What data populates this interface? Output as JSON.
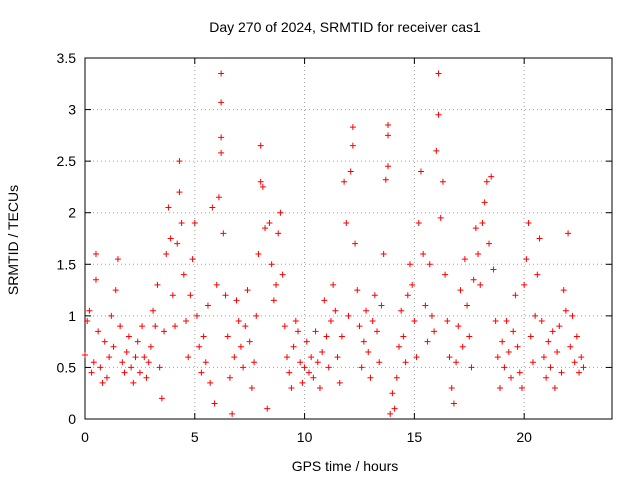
{
  "chart_data": {
    "type": "scatter",
    "title": "Day 270 of 2024, SRMTID for receiver cas1",
    "xlabel": "GPS time / hours",
    "ylabel": "SRMTID / TECUs",
    "xlim": [
      0,
      24
    ],
    "ylim": [
      0,
      3.5
    ],
    "xticks": [
      0,
      5,
      10,
      15,
      20
    ],
    "xtick_labels": [
      "0",
      "5",
      "10",
      "15",
      "20"
    ],
    "yticks": [
      0,
      0.5,
      1,
      1.5,
      2,
      2.5,
      3,
      3.5
    ],
    "ytick_labels": [
      "0",
      "0.5",
      "1",
      "1.5",
      "2",
      "2.5",
      "3",
      "3.5"
    ],
    "grid": true,
    "marker": "+",
    "color": "#ff0000",
    "series": [
      {
        "name": "SRMTID",
        "points": [
          [
            0.0,
            0.62
          ],
          [
            0.1,
            0.95
          ],
          [
            0.2,
            1.05
          ],
          [
            0.3,
            0.45
          ],
          [
            0.4,
            0.55
          ],
          [
            0.5,
            1.35
          ],
          [
            0.5,
            1.6
          ],
          [
            0.6,
            0.85
          ],
          [
            0.7,
            0.5
          ],
          [
            0.8,
            0.35
          ],
          [
            0.9,
            0.75
          ],
          [
            1.0,
            0.4
          ],
          [
            1.1,
            0.6
          ],
          [
            1.2,
            1.0
          ],
          [
            1.3,
            0.7
          ],
          [
            1.4,
            1.25
          ],
          [
            1.5,
            1.55
          ],
          [
            1.6,
            0.9
          ],
          [
            1.7,
            0.55
          ],
          [
            1.8,
            0.45
          ],
          [
            1.9,
            0.65
          ],
          [
            2.0,
            0.8
          ],
          [
            2.1,
            0.5
          ],
          [
            2.2,
            0.35
          ],
          [
            2.3,
            0.6
          ],
          [
            2.4,
            0.75
          ],
          [
            2.5,
            0.45
          ],
          [
            2.6,
            0.9
          ],
          [
            2.7,
            0.6
          ],
          [
            2.8,
            0.4
          ],
          [
            2.9,
            0.55
          ],
          [
            3.0,
            0.7
          ],
          [
            3.1,
            1.05
          ],
          [
            3.2,
            0.9
          ],
          [
            3.3,
            1.3
          ],
          [
            3.4,
            0.5
          ],
          [
            3.5,
            0.2
          ],
          [
            3.6,
            0.85
          ],
          [
            3.7,
            1.6
          ],
          [
            3.8,
            2.05
          ],
          [
            3.9,
            1.75
          ],
          [
            4.0,
            1.2
          ],
          [
            4.1,
            0.9
          ],
          [
            4.2,
            1.7
          ],
          [
            4.3,
            2.2
          ],
          [
            4.3,
            2.5
          ],
          [
            4.4,
            1.9
          ],
          [
            4.5,
            1.4
          ],
          [
            4.6,
            0.95
          ],
          [
            4.7,
            0.6
          ],
          [
            4.8,
            1.2
          ],
          [
            4.9,
            1.55
          ],
          [
            5.0,
            1.9
          ],
          [
            5.1,
            1.0
          ],
          [
            5.2,
            0.7
          ],
          [
            5.3,
            0.45
          ],
          [
            5.4,
            0.8
          ],
          [
            5.5,
            0.55
          ],
          [
            5.6,
            1.1
          ],
          [
            5.7,
            0.35
          ],
          [
            5.8,
            2.05
          ],
          [
            5.9,
            0.15
          ],
          [
            6.0,
            1.3
          ],
          [
            6.1,
            2.15
          ],
          [
            6.2,
            3.35
          ],
          [
            6.2,
            3.07
          ],
          [
            6.2,
            2.73
          ],
          [
            6.2,
            2.58
          ],
          [
            6.3,
            1.8
          ],
          [
            6.4,
            1.2
          ],
          [
            6.5,
            0.8
          ],
          [
            6.6,
            0.4
          ],
          [
            6.7,
            0.05
          ],
          [
            6.8,
            0.6
          ],
          [
            6.9,
            1.15
          ],
          [
            7.0,
            0.95
          ],
          [
            7.1,
            0.7
          ],
          [
            7.2,
            0.5
          ],
          [
            7.3,
            0.9
          ],
          [
            7.4,
            1.25
          ],
          [
            7.5,
            0.75
          ],
          [
            7.6,
            0.3
          ],
          [
            7.7,
            0.55
          ],
          [
            7.8,
            1.0
          ],
          [
            7.9,
            1.6
          ],
          [
            8.0,
            2.3
          ],
          [
            8.0,
            2.65
          ],
          [
            8.1,
            2.25
          ],
          [
            8.2,
            1.85
          ],
          [
            8.3,
            0.1
          ],
          [
            8.4,
            1.9
          ],
          [
            8.5,
            1.5
          ],
          [
            8.6,
            1.15
          ],
          [
            8.7,
            1.3
          ],
          [
            8.8,
            1.8
          ],
          [
            8.9,
            2.0
          ],
          [
            9.0,
            1.4
          ],
          [
            9.1,
            0.9
          ],
          [
            9.2,
            0.6
          ],
          [
            9.3,
            0.45
          ],
          [
            9.4,
            0.3
          ],
          [
            9.5,
            0.7
          ],
          [
            9.6,
            0.95
          ],
          [
            9.7,
            0.85
          ],
          [
            9.8,
            0.55
          ],
          [
            9.9,
            0.35
          ],
          [
            10.0,
            0.5
          ],
          [
            10.1,
            0.75
          ],
          [
            10.2,
            0.45
          ],
          [
            10.3,
            0.6
          ],
          [
            10.4,
            0.4
          ],
          [
            10.5,
            0.85
          ],
          [
            10.6,
            0.55
          ],
          [
            10.7,
            0.3
          ],
          [
            10.8,
            0.65
          ],
          [
            10.9,
            1.15
          ],
          [
            11.0,
            0.8
          ],
          [
            11.1,
            0.5
          ],
          [
            11.2,
            0.95
          ],
          [
            11.3,
            1.3
          ],
          [
            11.4,
            1.05
          ],
          [
            11.5,
            0.6
          ],
          [
            11.6,
            0.35
          ],
          [
            11.7,
            0.8
          ],
          [
            11.8,
            2.3
          ],
          [
            11.9,
            1.9
          ],
          [
            12.0,
            1.0
          ],
          [
            12.1,
            2.4
          ],
          [
            12.2,
            2.65
          ],
          [
            12.2,
            2.83
          ],
          [
            12.3,
            1.7
          ],
          [
            12.4,
            1.25
          ],
          [
            12.5,
            0.9
          ],
          [
            12.6,
            0.5
          ],
          [
            12.7,
            0.75
          ],
          [
            12.8,
            1.05
          ],
          [
            12.9,
            0.65
          ],
          [
            13.0,
            0.4
          ],
          [
            13.1,
            0.95
          ],
          [
            13.2,
            1.2
          ],
          [
            13.3,
            0.85
          ],
          [
            13.4,
            0.55
          ],
          [
            13.5,
            1.1
          ],
          [
            13.6,
            1.6
          ],
          [
            13.7,
            2.32
          ],
          [
            13.8,
            2.45
          ],
          [
            13.8,
            2.75
          ],
          [
            13.8,
            2.85
          ],
          [
            13.9,
            0.05
          ],
          [
            14.0,
            0.25
          ],
          [
            14.1,
            0.1
          ],
          [
            14.2,
            0.4
          ],
          [
            14.3,
            0.7
          ],
          [
            14.4,
            1.05
          ],
          [
            14.5,
            0.8
          ],
          [
            14.6,
            0.55
          ],
          [
            14.7,
            1.2
          ],
          [
            14.8,
            1.5
          ],
          [
            14.9,
            1.3
          ],
          [
            15.0,
            0.95
          ],
          [
            15.1,
            0.6
          ],
          [
            15.2,
            1.9
          ],
          [
            15.3,
            2.4
          ],
          [
            15.4,
            1.6
          ],
          [
            15.5,
            1.1
          ],
          [
            15.6,
            0.75
          ],
          [
            15.7,
            1.5
          ],
          [
            15.8,
            1.0
          ],
          [
            15.9,
            0.85
          ],
          [
            16.0,
            2.6
          ],
          [
            16.1,
            2.95
          ],
          [
            16.1,
            3.35
          ],
          [
            16.2,
            1.95
          ],
          [
            16.3,
            2.3
          ],
          [
            16.4,
            1.4
          ],
          [
            16.5,
            0.95
          ],
          [
            16.6,
            0.6
          ],
          [
            16.7,
            0.3
          ],
          [
            16.8,
            0.15
          ],
          [
            16.9,
            0.55
          ],
          [
            17.0,
            0.9
          ],
          [
            17.1,
            1.25
          ],
          [
            17.2,
            0.7
          ],
          [
            17.3,
            1.55
          ],
          [
            17.4,
            1.1
          ],
          [
            17.5,
            0.8
          ],
          [
            17.6,
            0.5
          ],
          [
            17.7,
            1.35
          ],
          [
            17.8,
            1.85
          ],
          [
            17.9,
            1.6
          ],
          [
            18.0,
            1.3
          ],
          [
            18.1,
            1.9
          ],
          [
            18.2,
            2.1
          ],
          [
            18.3,
            2.3
          ],
          [
            18.4,
            1.7
          ],
          [
            18.5,
            2.35
          ],
          [
            18.6,
            1.45
          ],
          [
            18.7,
            0.95
          ],
          [
            18.8,
            0.6
          ],
          [
            18.9,
            0.3
          ],
          [
            19.0,
            0.75
          ],
          [
            19.1,
            0.5
          ],
          [
            19.2,
            0.95
          ],
          [
            19.3,
            0.65
          ],
          [
            19.4,
            0.4
          ],
          [
            19.5,
            0.85
          ],
          [
            19.6,
            1.2
          ],
          [
            19.7,
            0.7
          ],
          [
            19.8,
            0.45
          ],
          [
            19.9,
            0.3
          ],
          [
            20.0,
            1.3
          ],
          [
            20.1,
            1.55
          ],
          [
            20.2,
            1.9
          ],
          [
            20.3,
            0.8
          ],
          [
            20.4,
            0.55
          ],
          [
            20.5,
            1.0
          ],
          [
            20.6,
            1.4
          ],
          [
            20.7,
            1.75
          ],
          [
            20.8,
            0.95
          ],
          [
            20.9,
            0.6
          ],
          [
            21.0,
            0.4
          ],
          [
            21.1,
            0.75
          ],
          [
            21.2,
            0.5
          ],
          [
            21.3,
            0.85
          ],
          [
            21.4,
            0.3
          ],
          [
            21.5,
            0.65
          ],
          [
            21.6,
            0.9
          ],
          [
            21.7,
            0.45
          ],
          [
            21.8,
            1.25
          ],
          [
            21.9,
            1.05
          ],
          [
            22.0,
            1.8
          ],
          [
            22.1,
            0.7
          ],
          [
            22.2,
            1.0
          ],
          [
            22.3,
            0.55
          ],
          [
            22.4,
            0.8
          ],
          [
            22.5,
            0.45
          ],
          [
            22.6,
            0.6
          ],
          [
            22.7,
            0.5
          ]
        ]
      }
    ]
  }
}
